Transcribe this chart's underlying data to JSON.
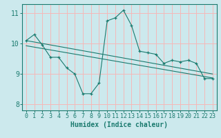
{
  "xlabel": "Humidex (Indice chaleur)",
  "background_color": "#cce9ed",
  "grid_color": "#f5b8b8",
  "line_color": "#1a7a6e",
  "xlim": [
    -0.5,
    23.5
  ],
  "ylim": [
    7.8,
    11.3
  ],
  "yticks": [
    8,
    9,
    10,
    11
  ],
  "xticks": [
    0,
    1,
    2,
    3,
    4,
    5,
    6,
    7,
    8,
    9,
    10,
    11,
    12,
    13,
    14,
    15,
    16,
    17,
    18,
    19,
    20,
    21,
    22,
    23
  ],
  "main_x": [
    0,
    1,
    2,
    3,
    4,
    5,
    6,
    7,
    8,
    9,
    10,
    11,
    12,
    13,
    14,
    15,
    16,
    17,
    18,
    19,
    20,
    21,
    22,
    23
  ],
  "main_y": [
    10.1,
    10.3,
    9.95,
    9.55,
    9.55,
    9.2,
    9.0,
    8.35,
    8.35,
    8.7,
    10.75,
    10.85,
    11.1,
    10.6,
    9.75,
    9.7,
    9.65,
    9.35,
    9.45,
    9.4,
    9.45,
    9.35,
    8.85,
    8.85
  ],
  "trend1_x": [
    0,
    23
  ],
  "trend1_y": [
    10.1,
    9.0
  ],
  "trend2_x": [
    0,
    23
  ],
  "trend2_y": [
    9.93,
    8.87
  ],
  "xlabel_fontsize": 7,
  "tick_fontsize": 6
}
